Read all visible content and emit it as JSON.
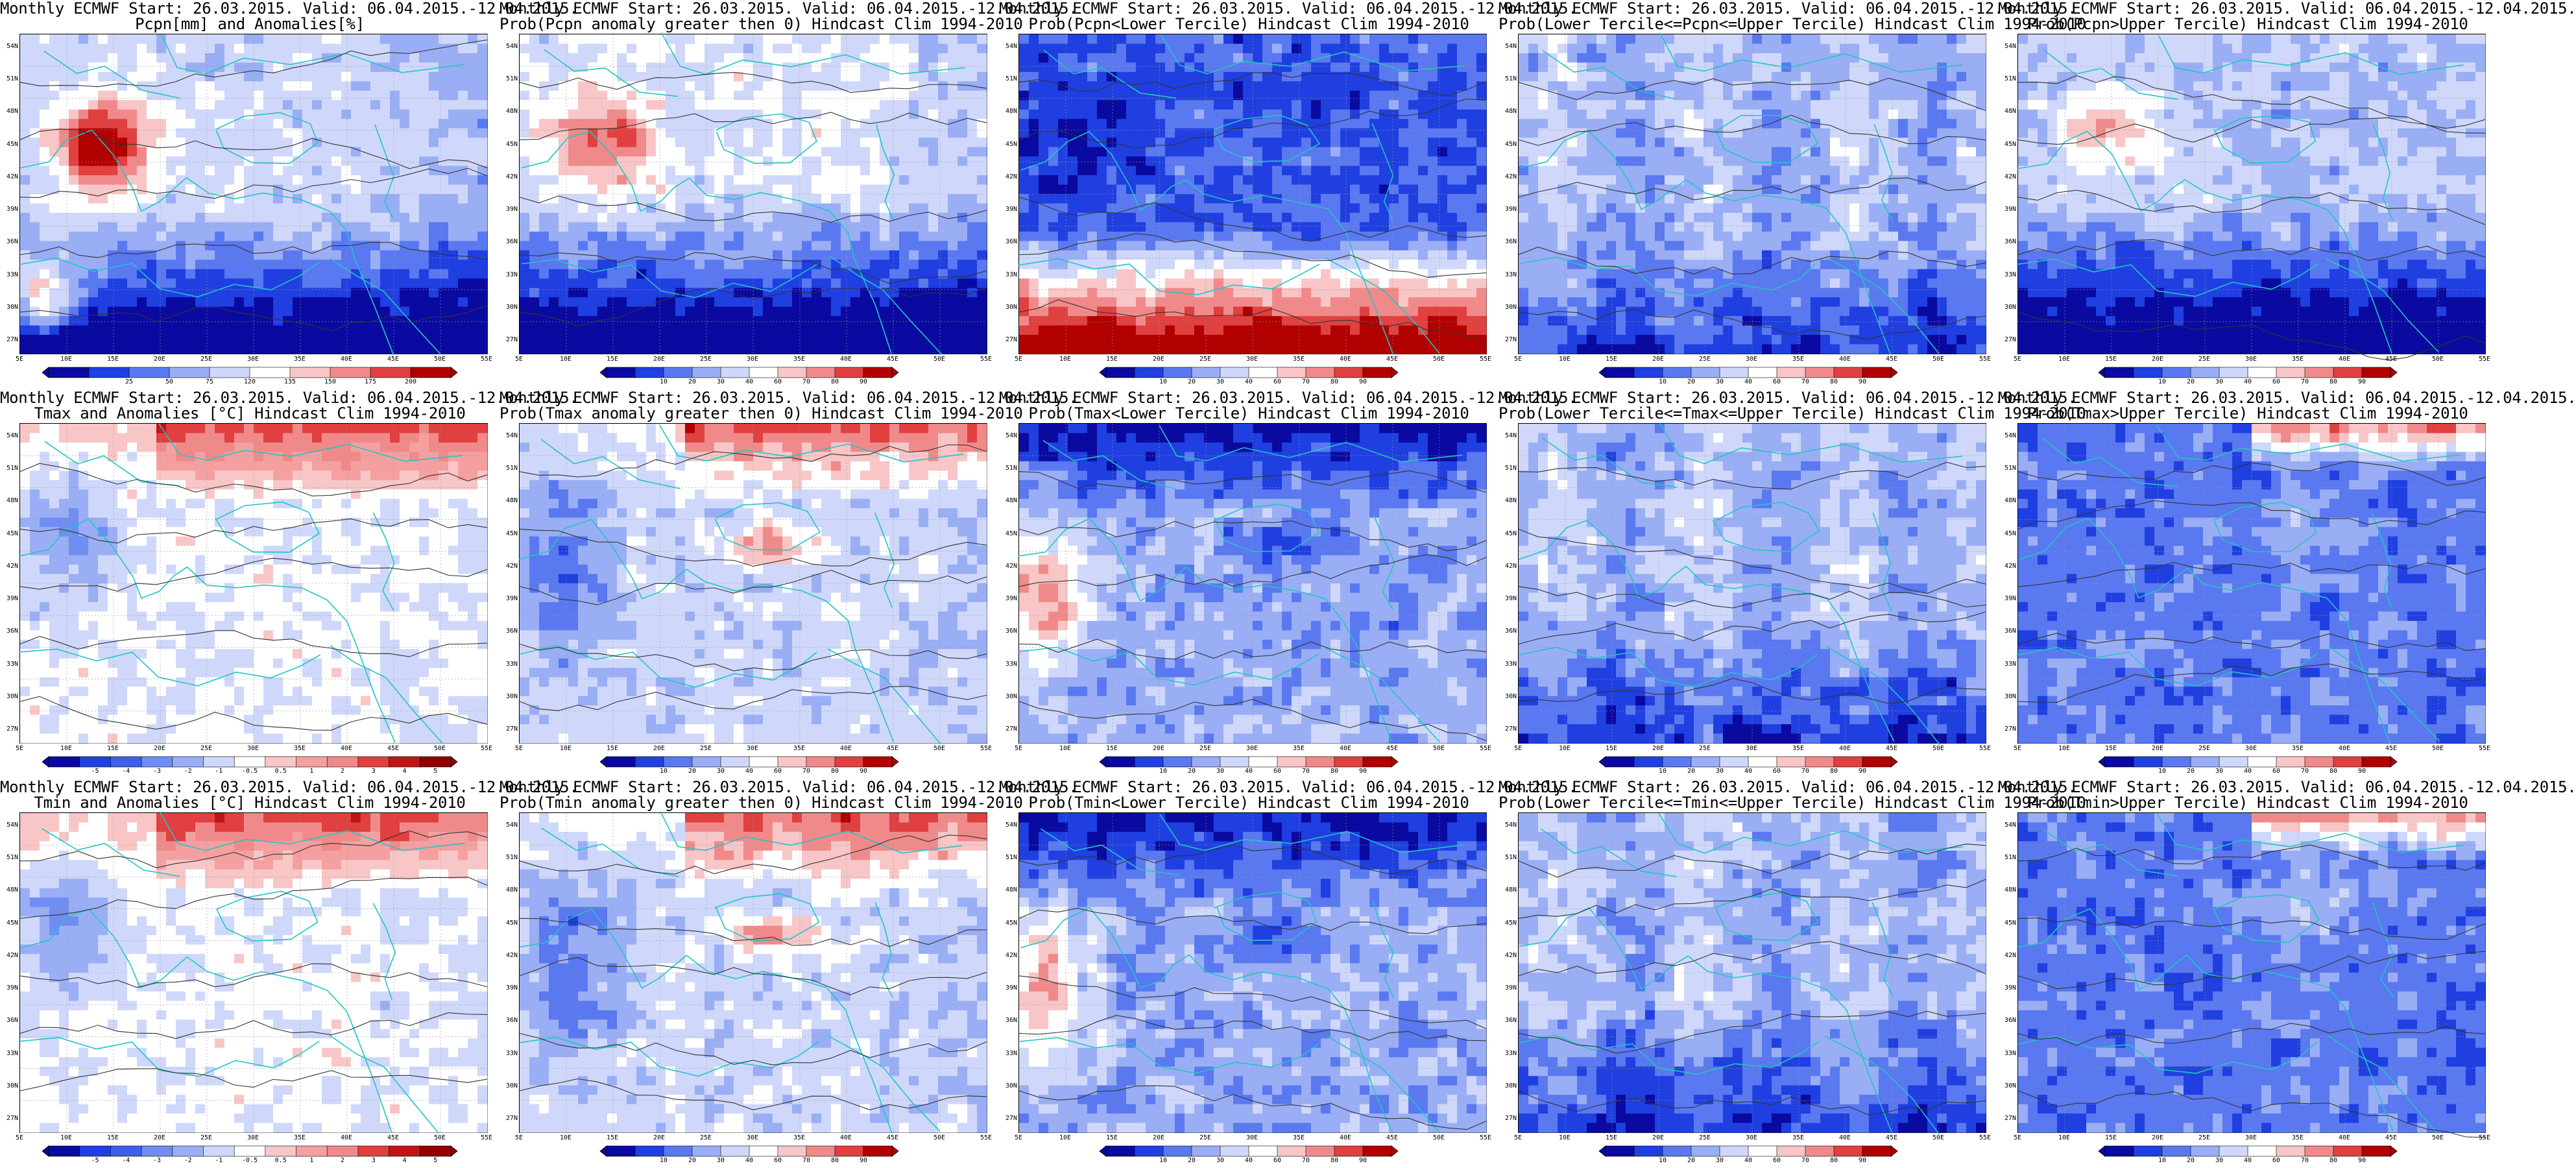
{
  "figure": {
    "panels": [
      {
        "title_line1": "Monthly ECMWF Start: 26.03.2015. Valid: 06.04.2015.-12.04.2015.",
        "title_line2": "Pcpn[mm] and Anomalies[%]",
        "variable": "anomaly_pcpn",
        "colorbar": "anomaly_pct"
      },
      {
        "title_line1": "Monthly ECMWF Start: 26.03.2015. Valid: 06.04.2015.-12.04.2015.",
        "title_line2": "Prob(Pcpn anomaly greater then 0) Hindcast Clim 1994-2010",
        "variable": "prob_pos",
        "colorbar": "prob"
      },
      {
        "title_line1": "Monthly ECMWF Start: 26.03.2015. Valid: 06.04.2015.-12.04.2015.",
        "title_line2": "Prob(Pcpn<Lower Tercile) Hindcast Clim 1994-2010",
        "variable": "prob_lower",
        "colorbar": "prob"
      },
      {
        "title_line1": "Monthly ECMWF Start: 26.03.2015. Valid: 06.04.2015.-12.04.2015.",
        "title_line2": "Prob(Lower Tercile<=Pcpn<=Upper Tercile) Hindcast Clim 1994-2010",
        "variable": "prob_middle",
        "colorbar": "prob"
      },
      {
        "title_line1": "Monthly ECMWF Start: 26.03.2015. Valid: 06.04.2015.-12.04.2015.",
        "title_line2": "Prob(Pcpn>Upper Tercile) Hindcast Clim 1994-2010",
        "variable": "prob_upper",
        "colorbar": "prob"
      },
      {
        "title_line1": "Monthly ECMWF Start: 26.03.2015. Valid: 06.04.2015.-12.04.2015.",
        "title_line2": "Tmax and Anomalies [°C] Hindcast Clim 1994-2010",
        "variable": "anomaly_t",
        "colorbar": "anomaly_t"
      },
      {
        "title_line1": "Monthly ECMWF Start: 26.03.2015. Valid: 06.04.2015.-12.04.2015.",
        "title_line2": "Prob(Tmax anomaly greater then 0) Hindcast Clim 1994-2010",
        "variable": "prob_pos_t",
        "colorbar": "prob"
      },
      {
        "title_line1": "Monthly ECMWF Start: 26.03.2015. Valid: 06.04.2015.-12.04.2015.",
        "title_line2": "Prob(Tmax<Lower Tercile) Hindcast Clim 1994-2010",
        "variable": "prob_lower_t",
        "colorbar": "prob"
      },
      {
        "title_line1": "Monthly ECMWF Start: 26.03.2015. Valid: 06.04.2015.-12.04.2015.",
        "title_line2": "Prob(Lower Tercile<=Tmax<=Upper Tercile) Hindcast Clim 1994-2010",
        "variable": "prob_middle",
        "colorbar": "prob"
      },
      {
        "title_line1": "Monthly ECMWF Start: 26.03.2015. Valid: 06.04.2015.-12.04.2015.",
        "title_line2": "Prob(Tmax>Upper Tercile) Hindcast Clim 1994-2010",
        "variable": "prob_upper_t",
        "colorbar": "prob"
      },
      {
        "title_line1": "Monthly ECMWF Start: 26.03.2015. Valid: 06.04.2015.-12.04.2015.",
        "title_line2": "Tmin and Anomalies [°C] Hindcast Clim 1994-2010",
        "variable": "anomaly_t",
        "colorbar": "anomaly_t"
      },
      {
        "title_line1": "Monthly ECMWF Start: 26.03.2015. Valid: 06.04.2015.-12.04.2015.",
        "title_line2": "Prob(Tmin anomaly greater then 0) Hindcast Clim 1994-2010",
        "variable": "prob_pos_t",
        "colorbar": "prob"
      },
      {
        "title_line1": "Monthly ECMWF Start: 26.03.2015. Valid: 06.04.2015.-12.04.2015.",
        "title_line2": "Prob(Tmin<Lower Tercile) Hindcast Clim 1994-2010",
        "variable": "prob_lower_t",
        "colorbar": "prob"
      },
      {
        "title_line1": "Monthly ECMWF Start: 26.03.2015. Valid: 06.04.2015.-12.04.2015.",
        "title_line2": "Prob(Lower Tercile<=Tmin<=Upper Tercile) Hindcast Clim 1994-2010",
        "variable": "prob_middle",
        "colorbar": "prob"
      },
      {
        "title_line1": "Monthly ECMWF Start: 26.03.2015. Valid: 06.04.2015.-12.04.2015.",
        "title_line2": "Prob(Tmin>Upper Tercile) Hindcast Clim 1994-2010",
        "variable": "prob_upper_t",
        "colorbar": "prob"
      }
    ],
    "lat_labels": [
      "54N",
      "51N",
      "48N",
      "45N",
      "42N",
      "39N",
      "36N",
      "33N",
      "30N",
      "27N"
    ],
    "lon_labels": [
      "5E",
      "10E",
      "15E",
      "20E",
      "25E",
      "30E",
      "35E",
      "40E",
      "45E",
      "50E",
      "55E"
    ],
    "map_extent": {
      "lon": [
        5,
        55
      ],
      "lat": [
        25,
        55
      ]
    },
    "colorbars": {
      "prob": {
        "ticks": [
          "10",
          "20",
          "30",
          "40",
          "60",
          "70",
          "80",
          "90"
        ],
        "colors": [
          "#0a0aa0",
          "#1f3fe0",
          "#5a78f0",
          "#9aaef5",
          "#cfd8fa",
          "#ffffff",
          "#f8c6c6",
          "#f08a8a",
          "#e04040",
          "#b00000"
        ]
      },
      "anomaly_pct": {
        "ticks": [
          "25",
          "50",
          "75",
          "120",
          "135",
          "150",
          "175",
          "200"
        ],
        "colors": [
          "#0a0aa0",
          "#1f3fe0",
          "#5a78f0",
          "#9aaef5",
          "#cfd8fa",
          "#ffffff",
          "#f8c6c6",
          "#f08a8a",
          "#e04040",
          "#b00000"
        ]
      },
      "anomaly_t": {
        "ticks": [
          "-5",
          "-4",
          "-3",
          "-2",
          "-1",
          "-0.5",
          "0.5",
          "1",
          "2",
          "3",
          "4",
          "5"
        ],
        "colors": [
          "#0a0aa0",
          "#1f3fe0",
          "#3f5fe8",
          "#6f8df2",
          "#9aaef5",
          "#cfd8fa",
          "#ffffff",
          "#f8c6c6",
          "#f4a0a0",
          "#f08a8a",
          "#e04040",
          "#c01515",
          "#900000"
        ]
      }
    },
    "colors": {
      "coastline": "#22c5c5",
      "contour": "#333333",
      "frame": "#000000"
    }
  }
}
